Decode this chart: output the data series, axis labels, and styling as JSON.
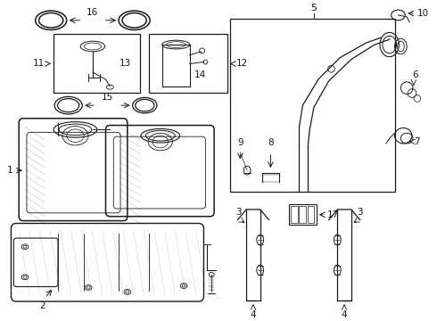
{
  "bg_color": "#ffffff",
  "lc": "#1a1a1a",
  "gray": "#888888",
  "light_gray": "#cccccc",
  "figsize": [
    4.9,
    3.6
  ],
  "dpi": 100
}
